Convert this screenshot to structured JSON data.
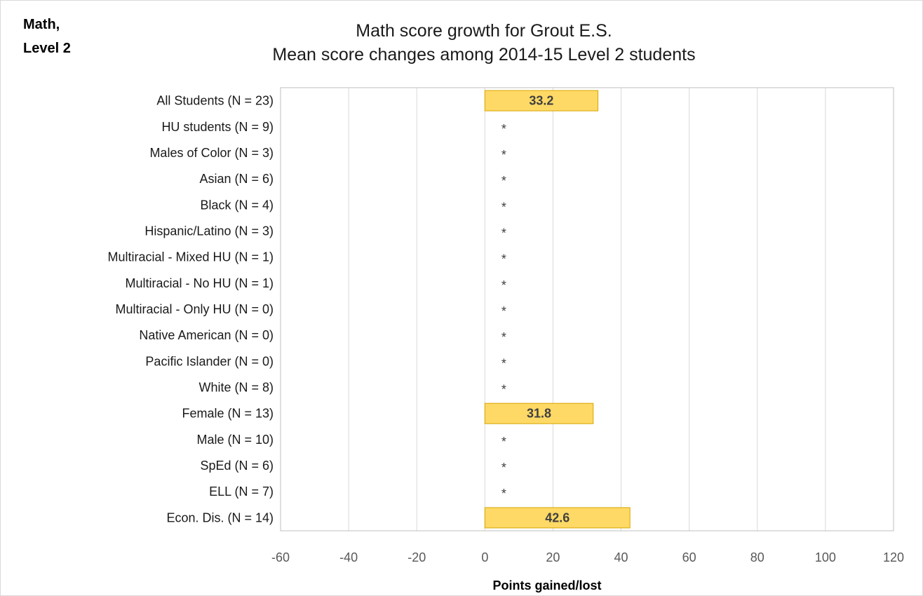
{
  "corner_label": "Math,\nLevel 2",
  "chart_data": {
    "type": "bar",
    "orientation": "horizontal",
    "title": "Math score growth for Grout E.S.",
    "subtitle": "Mean score changes among 2014-15 Level 2 students",
    "xlabel": "Points gained/lost",
    "ylabel": "",
    "xlim": [
      -60,
      120
    ],
    "x_ticks": [
      -60,
      -40,
      -20,
      0,
      20,
      40,
      60,
      80,
      100,
      120
    ],
    "grid": true,
    "categories": [
      "All Students (N = 23)",
      "HU students (N = 9)",
      "Males of Color (N = 3)",
      "Asian (N = 6)",
      "Black (N = 4)",
      "Hispanic/Latino (N = 3)",
      "Multiracial - Mixed HU (N = 1)",
      "Multiracial - No HU (N = 1)",
      "Multiracial - Only HU (N = 0)",
      "Native American (N = 0)",
      "Pacific Islander (N = 0)",
      "White (N = 8)",
      "Female (N = 13)",
      "Male (N = 10)",
      "SpEd (N = 6)",
      "ELL (N = 7)",
      "Econ. Dis. (N = 14)"
    ],
    "values": [
      33.2,
      null,
      null,
      null,
      null,
      null,
      null,
      null,
      null,
      null,
      null,
      null,
      31.8,
      null,
      null,
      null,
      42.6
    ],
    "suppressed_marker": "*",
    "bar_color": "#ffd966",
    "bar_border_color": "#d6a500"
  }
}
